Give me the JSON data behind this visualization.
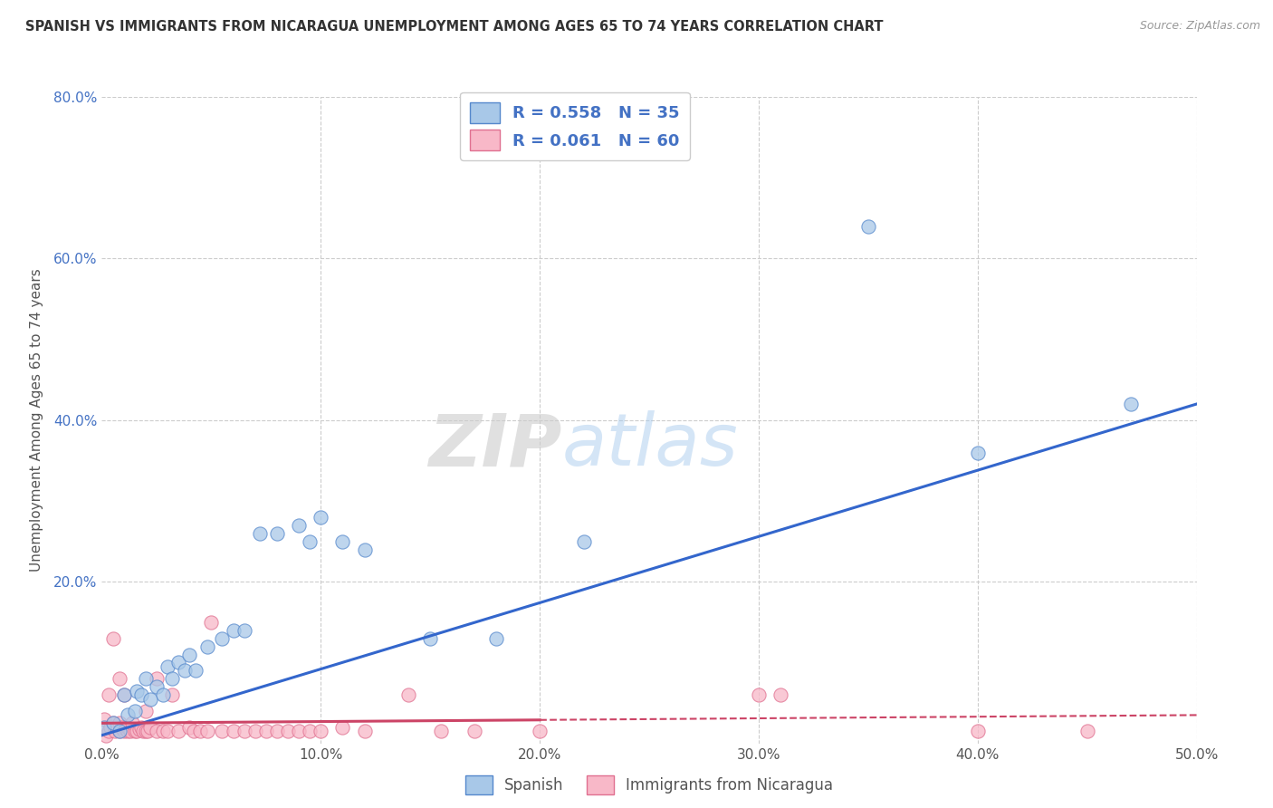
{
  "title": "SPANISH VS IMMIGRANTS FROM NICARAGUA UNEMPLOYMENT AMONG AGES 65 TO 74 YEARS CORRELATION CHART",
  "source": "Source: ZipAtlas.com",
  "ylabel": "Unemployment Among Ages 65 to 74 years",
  "xlim": [
    0.0,
    0.5
  ],
  "ylim": [
    0.0,
    0.8
  ],
  "blue_color": "#a8c8e8",
  "blue_edge": "#5588cc",
  "pink_color": "#f8b8c8",
  "pink_edge": "#e07090",
  "trendline_blue": "#3366cc",
  "trendline_pink": "#cc4466",
  "watermark_text": "ZIPatlas",
  "background_color": "#ffffff",
  "grid_color": "#cccccc",
  "blue_scatter_x": [
    0.001,
    0.005,
    0.008,
    0.01,
    0.012,
    0.015,
    0.016,
    0.018,
    0.02,
    0.022,
    0.025,
    0.028,
    0.03,
    0.032,
    0.035,
    0.038,
    0.04,
    0.043,
    0.048,
    0.055,
    0.06,
    0.065,
    0.072,
    0.08,
    0.09,
    0.095,
    0.1,
    0.11,
    0.12,
    0.15,
    0.18,
    0.22,
    0.35,
    0.4,
    0.47
  ],
  "blue_scatter_y": [
    0.02,
    0.025,
    0.015,
    0.06,
    0.035,
    0.04,
    0.065,
    0.06,
    0.08,
    0.055,
    0.07,
    0.06,
    0.095,
    0.08,
    0.1,
    0.09,
    0.11,
    0.09,
    0.12,
    0.13,
    0.14,
    0.14,
    0.26,
    0.26,
    0.27,
    0.25,
    0.28,
    0.25,
    0.24,
    0.13,
    0.13,
    0.25,
    0.64,
    0.36,
    0.42
  ],
  "pink_scatter_x": [
    0.001,
    0.002,
    0.003,
    0.003,
    0.004,
    0.005,
    0.005,
    0.006,
    0.007,
    0.008,
    0.008,
    0.008,
    0.009,
    0.01,
    0.01,
    0.011,
    0.012,
    0.012,
    0.013,
    0.014,
    0.015,
    0.016,
    0.017,
    0.018,
    0.019,
    0.02,
    0.02,
    0.021,
    0.022,
    0.025,
    0.025,
    0.028,
    0.03,
    0.032,
    0.035,
    0.04,
    0.042,
    0.045,
    0.048,
    0.05,
    0.055,
    0.06,
    0.065,
    0.07,
    0.075,
    0.08,
    0.085,
    0.09,
    0.095,
    0.1,
    0.11,
    0.12,
    0.14,
    0.155,
    0.17,
    0.2,
    0.3,
    0.31,
    0.4,
    0.45
  ],
  "pink_scatter_y": [
    0.03,
    0.01,
    0.015,
    0.06,
    0.02,
    0.025,
    0.13,
    0.015,
    0.02,
    0.025,
    0.015,
    0.08,
    0.02,
    0.015,
    0.06,
    0.018,
    0.015,
    0.02,
    0.015,
    0.025,
    0.015,
    0.015,
    0.018,
    0.02,
    0.015,
    0.015,
    0.04,
    0.015,
    0.02,
    0.015,
    0.08,
    0.015,
    0.015,
    0.06,
    0.015,
    0.02,
    0.015,
    0.015,
    0.015,
    0.15,
    0.015,
    0.015,
    0.015,
    0.015,
    0.015,
    0.015,
    0.015,
    0.015,
    0.015,
    0.015,
    0.02,
    0.015,
    0.06,
    0.015,
    0.015,
    0.015,
    0.06,
    0.06,
    0.015,
    0.015
  ],
  "blue_trend_x0": 0.0,
  "blue_trend_x1": 0.5,
  "blue_trend_y0": 0.01,
  "blue_trend_y1": 0.42,
  "pink_trend_x0": 0.0,
  "pink_trend_solid_x1": 0.2,
  "pink_trend_x1": 0.5,
  "pink_trend_y0": 0.025,
  "pink_trend_y1": 0.035
}
